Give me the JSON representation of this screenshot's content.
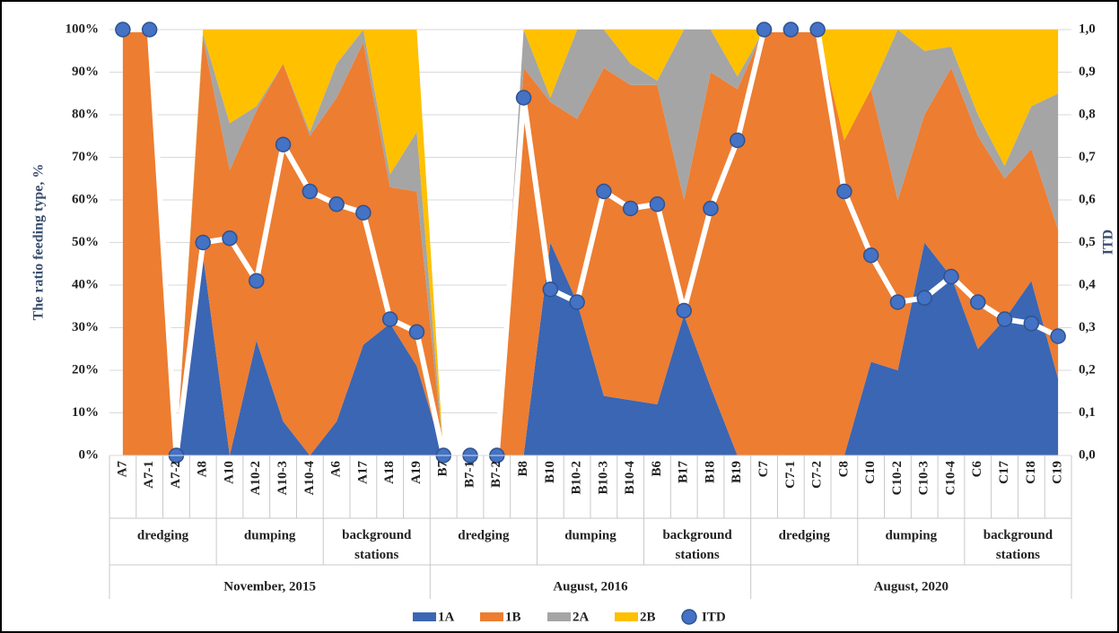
{
  "chart_data": {
    "type": "stacked_area_line",
    "y_label": "The ratio feeding  type, %",
    "y2_label": "ITD",
    "categories": [
      "A7",
      "A7-1",
      "A7-2",
      "A8",
      "A10",
      "A10-2",
      "A10-3",
      "A10-4",
      "A6",
      "A17",
      "A18",
      "A19",
      "B7",
      "B7-1",
      "B7-2",
      "B8",
      "B10",
      "B10-2",
      "B10-3",
      "B10-4",
      "B6",
      "B17",
      "B18",
      "B19",
      "C7",
      "C7-1",
      "C7-2",
      "C8",
      "C10",
      "C10-2",
      "C10-3",
      "C10-4",
      "C6",
      "C17",
      "C18",
      "C19"
    ],
    "group_labels": [
      "dredging",
      "dumping",
      "background stations",
      "dredging",
      "dumping",
      "background stations",
      "dredging",
      "dumping",
      "background stations"
    ],
    "period_labels": [
      "November, 2015",
      "August, 2016",
      "August, 2020"
    ],
    "series": [
      {
        "name": "1A",
        "color": "#3b66b3",
        "values": [
          0,
          0,
          0,
          47,
          0,
          27,
          8,
          0,
          8,
          26,
          31,
          21,
          0,
          0,
          0,
          0,
          50,
          36,
          14,
          13,
          12,
          33,
          16,
          0,
          0,
          0,
          0,
          0,
          22,
          20,
          50,
          42,
          25,
          32,
          41,
          18
        ]
      },
      {
        "name": "1B",
        "color": "#ed7d31",
        "values": [
          100,
          100,
          0,
          51,
          67,
          54,
          84,
          75,
          76,
          71,
          32,
          41,
          0,
          0,
          0,
          91,
          33,
          43,
          77,
          74,
          75,
          27,
          74,
          86,
          100,
          100,
          100,
          74,
          64,
          40,
          30,
          49,
          50,
          33,
          31,
          35
        ]
      },
      {
        "name": "2A",
        "color": "#a5a5a5",
        "values": [
          0,
          0,
          0,
          1,
          11,
          1,
          0,
          1,
          8,
          3,
          3,
          14,
          0,
          0,
          0,
          9,
          1,
          21,
          9,
          5,
          1,
          40,
          10,
          3,
          0,
          0,
          0,
          0,
          0,
          40,
          15,
          5,
          5,
          3,
          10,
          32
        ]
      },
      {
        "name": "2B",
        "color": "#ffc000",
        "values": [
          0,
          0,
          0,
          1,
          22,
          18,
          8,
          24,
          8,
          0,
          34,
          24,
          0,
          0,
          0,
          0,
          16,
          0,
          0,
          8,
          12,
          0,
          0,
          11,
          0,
          0,
          0,
          26,
          14,
          0,
          5,
          4,
          20,
          32,
          18,
          15
        ]
      },
      {
        "name": "ITD",
        "color": "#4472c4",
        "axis": "y2",
        "values": [
          1.0,
          1.0,
          0,
          0.5,
          0.51,
          0.41,
          0.73,
          0.62,
          0.59,
          0.57,
          0.32,
          0.29,
          0,
          0,
          0,
          0.84,
          0.39,
          0.36,
          0.62,
          0.58,
          0.59,
          0.34,
          0.58,
          0.74,
          1.0,
          1.0,
          1.0,
          0.62,
          0.47,
          0.36,
          0.37,
          0.42,
          0.36,
          0.32,
          0.31,
          0.28
        ]
      }
    ],
    "ylim": [
      0,
      100
    ],
    "yticks": [
      {
        "value": 0,
        "label": "0%"
      },
      {
        "value": 10,
        "label": "10%"
      },
      {
        "value": 20,
        "label": "20%"
      },
      {
        "value": 30,
        "label": "30%"
      },
      {
        "value": 40,
        "label": "40%"
      },
      {
        "value": 50,
        "label": "50%"
      },
      {
        "value": 60,
        "label": "60%"
      },
      {
        "value": 70,
        "label": "70%"
      },
      {
        "value": 80,
        "label": "80%"
      },
      {
        "value": 90,
        "label": "90%"
      },
      {
        "value": 100,
        "label": "100%"
      }
    ],
    "y2lim": [
      0,
      1
    ],
    "y2ticks": [
      {
        "value": 0,
        "label": "0,0"
      },
      {
        "value": 0.1,
        "label": "0,1"
      },
      {
        "value": 0.2,
        "label": "0,2"
      },
      {
        "value": 0.3,
        "label": "0,3"
      },
      {
        "value": 0.4,
        "label": "0,4"
      },
      {
        "value": 0.5,
        "label": "0,5"
      },
      {
        "value": 0.6,
        "label": "0,6"
      },
      {
        "value": 0.7,
        "label": "0,7"
      },
      {
        "value": 0.8,
        "label": "0,8"
      },
      {
        "value": 0.9,
        "label": "0,9"
      },
      {
        "value": 1,
        "label": "1,0"
      }
    ],
    "grid": true,
    "legend": "bottom"
  }
}
